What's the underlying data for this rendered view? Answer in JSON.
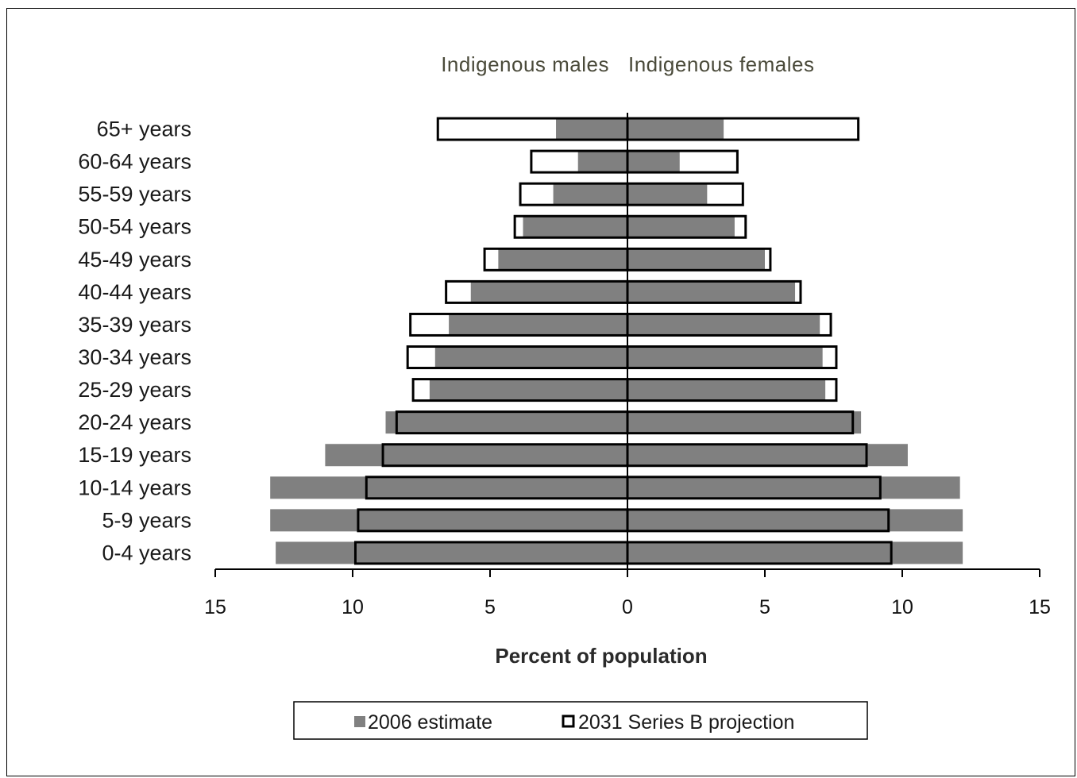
{
  "chart_data": {
    "type": "bar",
    "orientation": "horizontal",
    "layout": "population-pyramid",
    "left_title": "Indigenous males",
    "right_title": "Indigenous females",
    "xlabel": "Percent of population",
    "xlim": [
      -15,
      15
    ],
    "x_ticks": [
      -15,
      -10,
      -5,
      0,
      5,
      10,
      15
    ],
    "x_tick_labels": [
      "15",
      "10",
      "5",
      "0",
      "5",
      "10",
      "15"
    ],
    "categories": [
      "65+ years",
      "60-64 years",
      "55-59 years",
      "50-54 years",
      "45-49 years",
      "40-44 years",
      "35-39 years",
      "30-34 years",
      "25-29 years",
      "20-24 years",
      "15-19 years",
      "10-14 years",
      "5-9 years",
      "0-4 years"
    ],
    "series": [
      {
        "name": "2006 estimate",
        "style": "filled",
        "color": "#808080",
        "males": [
          2.6,
          1.8,
          2.7,
          3.8,
          4.7,
          5.7,
          6.5,
          7.0,
          7.2,
          8.8,
          11.0,
          13.0,
          13.0,
          12.8
        ],
        "females": [
          3.5,
          1.9,
          2.9,
          3.9,
          5.0,
          6.1,
          7.0,
          7.1,
          7.2,
          8.5,
          10.2,
          12.1,
          12.2,
          12.2
        ]
      },
      {
        "name": "2031 Series B projection",
        "style": "outline",
        "color": "#000000",
        "males": [
          6.9,
          3.5,
          3.9,
          4.1,
          5.2,
          6.6,
          7.9,
          8.0,
          7.8,
          8.4,
          8.9,
          9.5,
          9.8,
          9.9
        ],
        "females": [
          8.4,
          4.0,
          4.2,
          4.3,
          5.2,
          6.3,
          7.4,
          7.6,
          7.6,
          8.2,
          8.7,
          9.2,
          9.5,
          9.6
        ]
      }
    ],
    "legend": {
      "placement": "bottom-center",
      "border": true
    },
    "grid": false
  }
}
